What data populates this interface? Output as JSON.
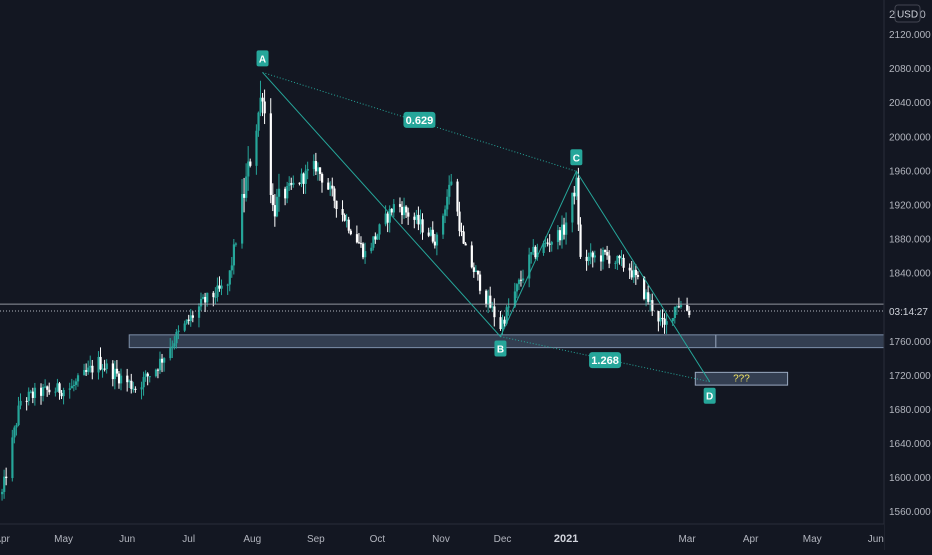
{
  "currency_button": "USD",
  "price_axis": {
    "top_label_partial": "2        0",
    "ticks": [
      "2120.000",
      "2080.000",
      "2040.000",
      "2000.000",
      "1960.000",
      "1920.000",
      "1880.000",
      "1840.000",
      "1800.000",
      "1760.000",
      "1720.000",
      "1680.000",
      "1640.000",
      "1600.000",
      "1560.000"
    ],
    "countdown": "03:14:27"
  },
  "time_axis": {
    "labels": [
      "Apr",
      "May",
      "Jun",
      "Jul",
      "Aug",
      "Sep",
      "Oct",
      "Nov",
      "Dec",
      "2021",
      "Mar",
      "Apr",
      "May",
      "Jun"
    ]
  },
  "pattern": {
    "points": [
      {
        "label": "A",
        "date": "2020-08-06",
        "price": 2075
      },
      {
        "label": "B",
        "date": "2020-11-30",
        "price": 1765
      },
      {
        "label": "C",
        "date": "2021-01-06",
        "price": 1959
      },
      {
        "label": "D",
        "date": "2021-03-12",
        "price": 1712
      }
    ],
    "ratio_ac": "0.629",
    "ratio_bd": "1.268",
    "target_label": "???"
  },
  "levels": {
    "support_zone": [
      1752,
      1767
    ],
    "target_zone": [
      1708,
      1723
    ],
    "last_price": 1795,
    "resistance_line": 1803
  },
  "colors": {
    "background": "#131722",
    "bull": "#26a69a",
    "bear": "#ffffff",
    "pattern": "#26a69a",
    "zone": "#5b6f8c",
    "axis_text": "#b2b5be"
  },
  "chart_data": {
    "type": "candlestick",
    "symbol_currency": "USD",
    "x_range": [
      "2020-03-31",
      "2021-06-05"
    ],
    "y_range": [
      1545,
      2160
    ],
    "waypoints": [
      {
        "date": "2020-04-01",
        "price": 1580
      },
      {
        "date": "2020-04-10",
        "price": 1690
      },
      {
        "date": "2020-04-20",
        "price": 1700
      },
      {
        "date": "2020-05-05",
        "price": 1705
      },
      {
        "date": "2020-05-18",
        "price": 1735
      },
      {
        "date": "2020-06-05",
        "price": 1705
      },
      {
        "date": "2020-06-15",
        "price": 1728
      },
      {
        "date": "2020-06-25",
        "price": 1765
      },
      {
        "date": "2020-07-08",
        "price": 1805
      },
      {
        "date": "2020-07-20",
        "price": 1825
      },
      {
        "date": "2020-08-06",
        "price": 2055
      },
      {
        "date": "2020-08-11",
        "price": 1915
      },
      {
        "date": "2020-08-20",
        "price": 1940
      },
      {
        "date": "2020-09-01",
        "price": 1965
      },
      {
        "date": "2020-09-25",
        "price": 1862
      },
      {
        "date": "2020-10-10",
        "price": 1922
      },
      {
        "date": "2020-10-30",
        "price": 1878
      },
      {
        "date": "2020-11-06",
        "price": 1950
      },
      {
        "date": "2020-11-12",
        "price": 1870
      },
      {
        "date": "2020-11-24",
        "price": 1805
      },
      {
        "date": "2020-11-30",
        "price": 1777
      },
      {
        "date": "2020-12-15",
        "price": 1860
      },
      {
        "date": "2020-12-31",
        "price": 1890
      },
      {
        "date": "2021-01-06",
        "price": 1945
      },
      {
        "date": "2021-01-08",
        "price": 1855
      },
      {
        "date": "2021-01-20",
        "price": 1860
      },
      {
        "date": "2021-02-01",
        "price": 1845
      },
      {
        "date": "2021-02-18",
        "price": 1775
      },
      {
        "date": "2021-02-24",
        "price": 1805
      },
      {
        "date": "2021-03-02",
        "price": 1795
      }
    ]
  }
}
